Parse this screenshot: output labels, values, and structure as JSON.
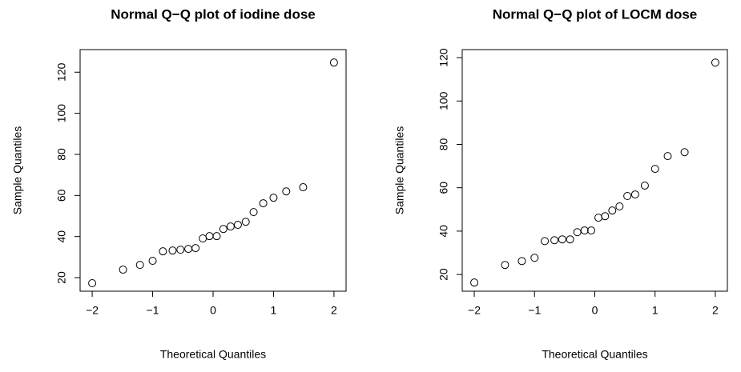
{
  "chart_data": [
    {
      "type": "scatter",
      "title": "Normal Q−Q plot of iodine dose",
      "x_label": "Theoretical Quantiles",
      "y_label": "Sample Quantiles",
      "xlim": [
        -2.2,
        2.2
      ],
      "ylim": [
        13.4,
        131
      ],
      "xticks": [
        {
          "value": -2,
          "label": "−2"
        },
        {
          "value": -1,
          "label": "−1"
        },
        0,
        1,
        2
      ],
      "yticks": [
        20,
        40,
        60,
        80,
        100,
        120
      ],
      "series": [
        {
          "color": "#000000",
          "x": [
            -2.0,
            -1.49,
            -1.21,
            -1.0,
            -0.83,
            -0.67,
            -0.54,
            -0.41,
            -0.29,
            -0.17,
            -0.06,
            0.06,
            0.17,
            0.29,
            0.41,
            0.54,
            0.67,
            0.83,
            1.0,
            1.21,
            1.49,
            2.0
          ],
          "values": [
            17.3,
            23.9,
            26.2,
            28.2,
            32.8,
            33.2,
            33.6,
            34.0,
            34.4,
            39.1,
            40.2,
            40.2,
            43.7,
            44.9,
            45.7,
            47.2,
            51.9,
            56.2,
            58.9,
            62.0,
            64.0,
            124.7
          ]
        }
      ]
    },
    {
      "type": "scatter",
      "title": "Normal Q−Q plot of LOCM dose",
      "x_label": "Theoretical Quantiles",
      "y_label": "Sample Quantiles",
      "xlim": [
        -2.2,
        2.2
      ],
      "ylim": [
        12.3,
        123.7
      ],
      "xticks": [
        {
          "value": -2,
          "label": "−2"
        },
        {
          "value": -1,
          "label": "−1"
        },
        0,
        1,
        2
      ],
      "yticks": [
        20,
        40,
        60,
        80,
        100,
        120
      ],
      "series": [
        {
          "color": "#000000",
          "x": [
            -2.0,
            -1.49,
            -1.21,
            -1.0,
            -0.83,
            -0.67,
            -0.54,
            -0.41,
            -0.29,
            -0.17,
            -0.06,
            0.06,
            0.17,
            0.29,
            0.41,
            0.54,
            0.67,
            0.83,
            1.0,
            1.21,
            1.49,
            2.0
          ],
          "values": [
            16.3,
            24.4,
            26.2,
            27.7,
            35.4,
            35.8,
            36.2,
            36.2,
            39.5,
            40.3,
            40.3,
            46.2,
            46.9,
            49.5,
            51.4,
            56.2,
            56.9,
            61.0,
            68.7,
            74.6,
            76.4,
            117.7
          ]
        }
      ]
    }
  ]
}
